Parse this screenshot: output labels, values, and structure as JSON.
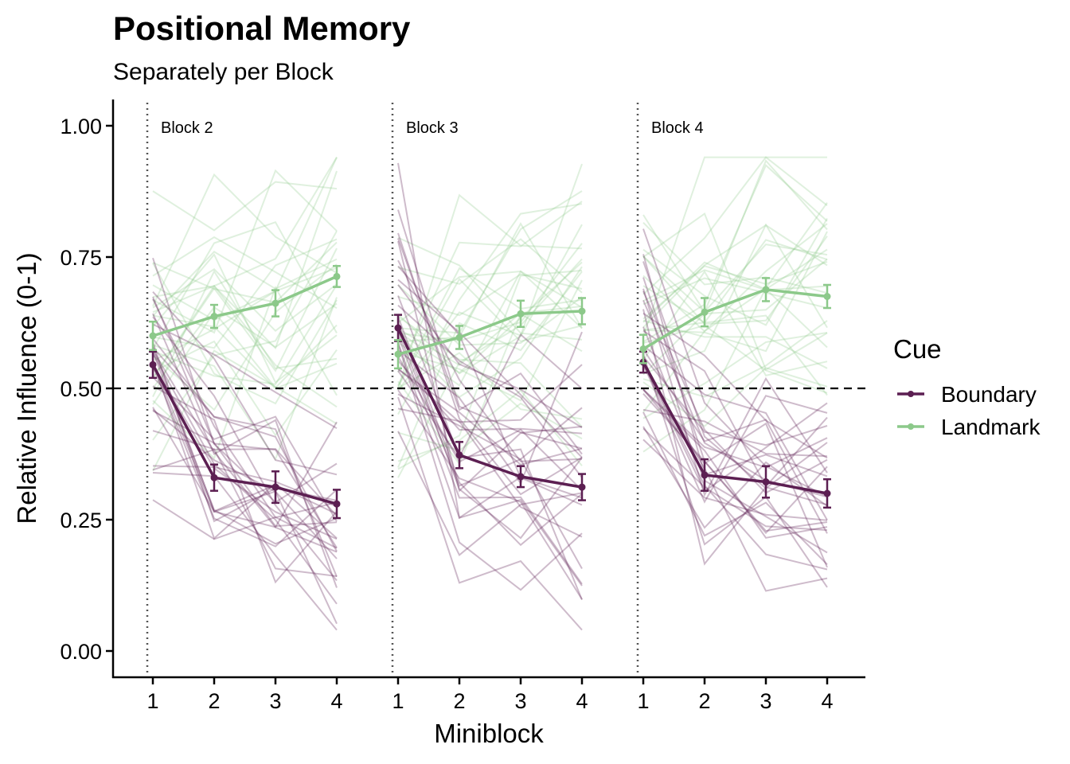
{
  "chart_data": {
    "type": "line",
    "title": "Positional Memory",
    "subtitle": "Separately per Block",
    "xlabel": "Miniblock",
    "ylabel": "Relative Influence (0-1)",
    "ylim": [
      -0.05,
      1.05
    ],
    "yticks": [
      "0.00",
      "0.25",
      "0.50",
      "0.75",
      "1.00"
    ],
    "ytick_values": [
      0,
      0.25,
      0.5,
      0.75,
      1.0
    ],
    "x_categories": [
      "1",
      "2",
      "3",
      "4"
    ],
    "reference_line": 0.5,
    "grid": false,
    "legend": {
      "title": "Cue",
      "position": "right",
      "entries": [
        "Boundary",
        "Landmark"
      ]
    },
    "colors": {
      "Boundary": "#5c1f52",
      "Landmark": "#8cc98a"
    },
    "panels": [
      {
        "label": "Block 2",
        "series": [
          {
            "name": "Boundary",
            "values": [
              0.545,
              0.33,
              0.312,
              0.28
            ],
            "errors": [
              0.025,
              0.025,
              0.03,
              0.027
            ]
          },
          {
            "name": "Landmark",
            "values": [
              0.6,
              0.637,
              0.662,
              0.713
            ],
            "errors": [
              0.027,
              0.022,
              0.025,
              0.02
            ]
          }
        ]
      },
      {
        "label": "Block 3",
        "series": [
          {
            "name": "Boundary",
            "values": [
              0.615,
              0.373,
              0.332,
              0.312
            ],
            "errors": [
              0.025,
              0.025,
              0.02,
              0.025
            ]
          },
          {
            "name": "Landmark",
            "values": [
              0.565,
              0.597,
              0.642,
              0.647
            ],
            "errors": [
              0.027,
              0.022,
              0.025,
              0.025
            ]
          }
        ]
      },
      {
        "label": "Block 4",
        "series": [
          {
            "name": "Boundary",
            "values": [
              0.55,
              0.335,
              0.322,
              0.3
            ],
            "errors": [
              0.02,
              0.03,
              0.03,
              0.027
            ]
          },
          {
            "name": "Landmark",
            "values": [
              0.575,
              0.645,
              0.688,
              0.675
            ],
            "errors": [
              0.027,
              0.027,
              0.022,
              0.022
            ]
          }
        ]
      }
    ]
  }
}
